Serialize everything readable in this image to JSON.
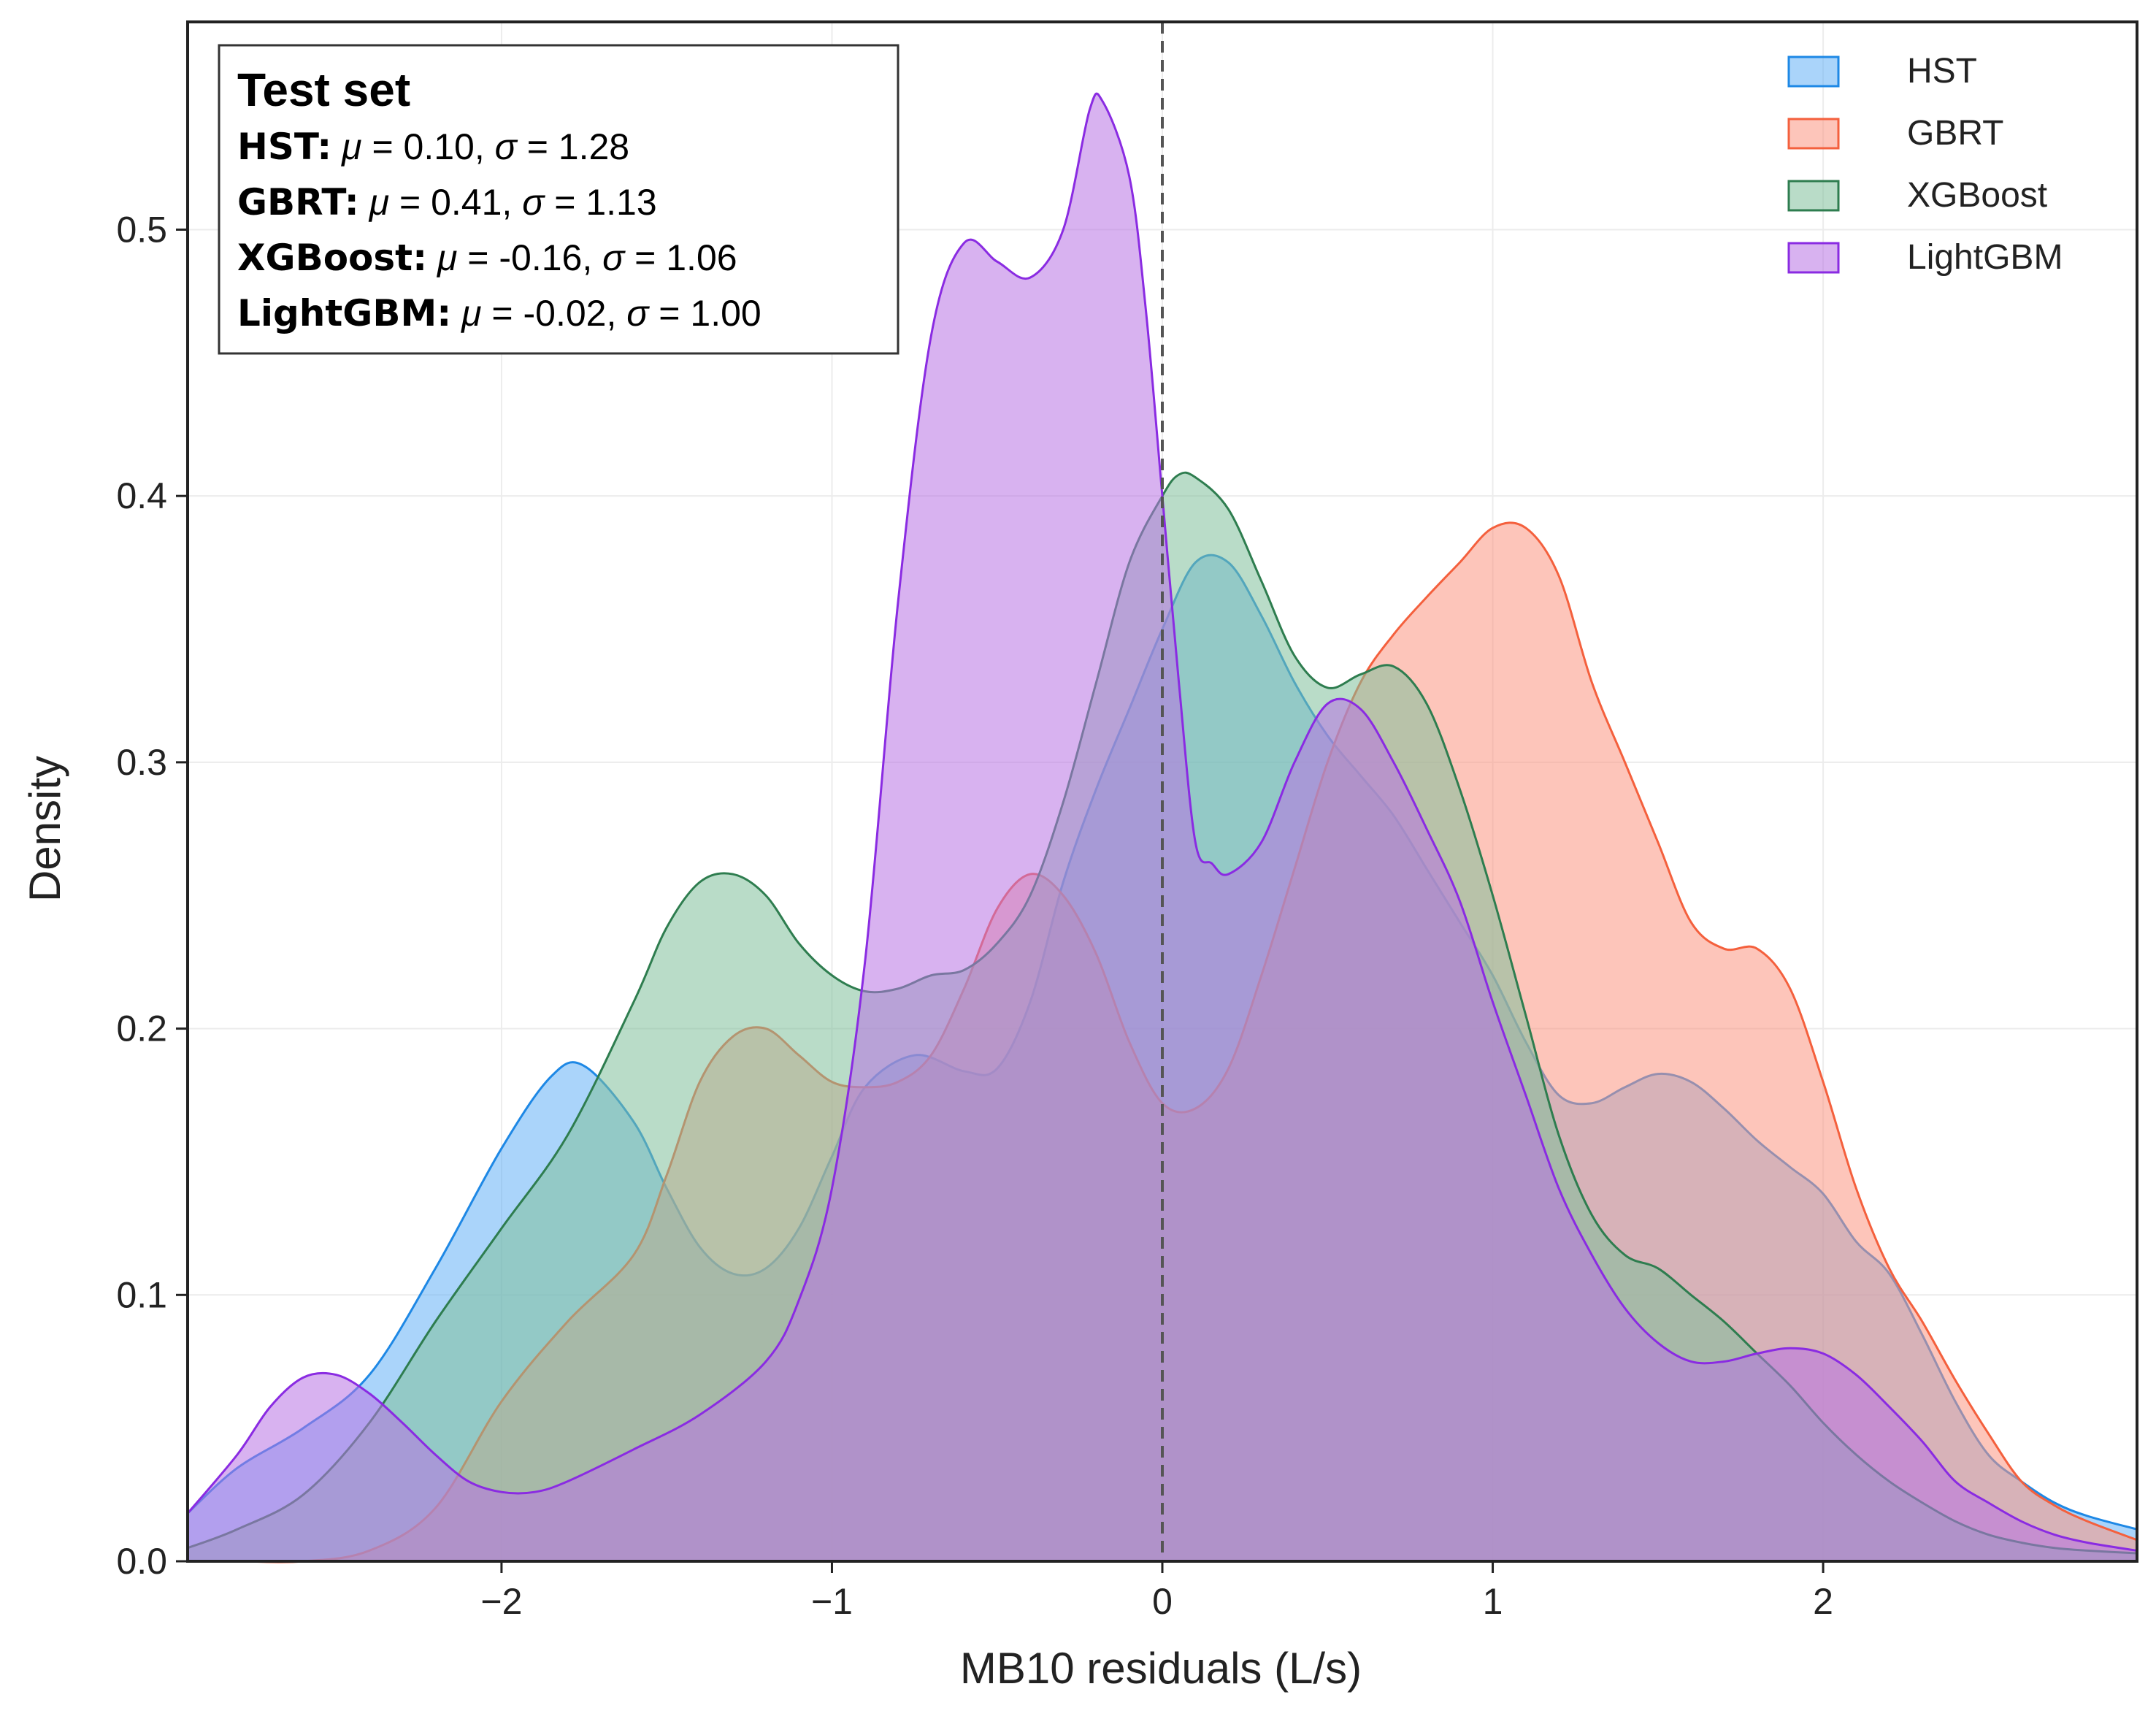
{
  "chart_data": {
    "type": "area",
    "xlabel": "MB10 residuals (L/s)",
    "ylabel": "Density",
    "xlim": [
      -2.95,
      2.95
    ],
    "ylim": [
      0,
      0.578
    ],
    "x_ticks": [
      -2,
      -1,
      0,
      1,
      2
    ],
    "x_tick_labels": [
      "−2",
      "−1",
      "0",
      "1",
      "2"
    ],
    "y_ticks": [
      0.0,
      0.1,
      0.2,
      0.3,
      0.4,
      0.5
    ],
    "y_tick_labels": [
      "0.0",
      "0.1",
      "0.2",
      "0.3",
      "0.4",
      "0.5"
    ],
    "grid": true,
    "legend_position": "top-right",
    "reference_line": {
      "x": 0,
      "style": "dashed"
    },
    "annotation": {
      "title": "Test set",
      "lines": [
        {
          "model": "HST",
          "mu": "0.10",
          "sigma": "1.28"
        },
        {
          "model": "GBRT",
          "mu": "0.41",
          "sigma": "1.13"
        },
        {
          "model": "XGBoost",
          "mu": "-0.16",
          "sigma": "1.06"
        },
        {
          "model": "LightGBM",
          "mu": "-0.02",
          "sigma": "1.00"
        }
      ]
    },
    "series": [
      {
        "name": "HST",
        "color": "#1e88e5",
        "fill": "#64b0f5",
        "points": [
          [
            -2.95,
            0.018
          ],
          [
            -2.8,
            0.035
          ],
          [
            -2.6,
            0.05
          ],
          [
            -2.4,
            0.07
          ],
          [
            -2.2,
            0.11
          ],
          [
            -2.0,
            0.155
          ],
          [
            -1.85,
            0.182
          ],
          [
            -1.75,
            0.186
          ],
          [
            -1.6,
            0.165
          ],
          [
            -1.5,
            0.14
          ],
          [
            -1.4,
            0.118
          ],
          [
            -1.3,
            0.108
          ],
          [
            -1.2,
            0.11
          ],
          [
            -1.1,
            0.125
          ],
          [
            -1.0,
            0.152
          ],
          [
            -0.9,
            0.178
          ],
          [
            -0.75,
            0.19
          ],
          [
            -0.6,
            0.184
          ],
          [
            -0.5,
            0.185
          ],
          [
            -0.4,
            0.21
          ],
          [
            -0.3,
            0.255
          ],
          [
            -0.2,
            0.29
          ],
          [
            -0.1,
            0.32
          ],
          [
            0.0,
            0.35
          ],
          [
            0.1,
            0.375
          ],
          [
            0.2,
            0.375
          ],
          [
            0.3,
            0.355
          ],
          [
            0.4,
            0.33
          ],
          [
            0.5,
            0.31
          ],
          [
            0.6,
            0.295
          ],
          [
            0.7,
            0.28
          ],
          [
            0.8,
            0.26
          ],
          [
            0.9,
            0.24
          ],
          [
            1.0,
            0.22
          ],
          [
            1.1,
            0.195
          ],
          [
            1.2,
            0.175
          ],
          [
            1.3,
            0.172
          ],
          [
            1.4,
            0.178
          ],
          [
            1.5,
            0.183
          ],
          [
            1.6,
            0.18
          ],
          [
            1.7,
            0.17
          ],
          [
            1.8,
            0.158
          ],
          [
            1.9,
            0.148
          ],
          [
            2.0,
            0.138
          ],
          [
            2.1,
            0.12
          ],
          [
            2.2,
            0.108
          ],
          [
            2.3,
            0.085
          ],
          [
            2.4,
            0.06
          ],
          [
            2.5,
            0.04
          ],
          [
            2.6,
            0.03
          ],
          [
            2.7,
            0.022
          ],
          [
            2.8,
            0.017
          ],
          [
            2.95,
            0.012
          ]
        ]
      },
      {
        "name": "GBRT",
        "color": "#f4603d",
        "fill": "#fb9582",
        "points": [
          [
            -2.95,
            0.0
          ],
          [
            -2.8,
            0.0
          ],
          [
            -2.6,
            0.0
          ],
          [
            -2.4,
            0.004
          ],
          [
            -2.2,
            0.02
          ],
          [
            -2.0,
            0.06
          ],
          [
            -1.8,
            0.09
          ],
          [
            -1.6,
            0.115
          ],
          [
            -1.5,
            0.145
          ],
          [
            -1.4,
            0.18
          ],
          [
            -1.3,
            0.197
          ],
          [
            -1.2,
            0.2
          ],
          [
            -1.1,
            0.19
          ],
          [
            -1.0,
            0.18
          ],
          [
            -0.9,
            0.178
          ],
          [
            -0.8,
            0.18
          ],
          [
            -0.7,
            0.19
          ],
          [
            -0.6,
            0.215
          ],
          [
            -0.5,
            0.245
          ],
          [
            -0.4,
            0.258
          ],
          [
            -0.3,
            0.25
          ],
          [
            -0.2,
            0.228
          ],
          [
            -0.1,
            0.195
          ],
          [
            0.0,
            0.172
          ],
          [
            0.1,
            0.17
          ],
          [
            0.2,
            0.185
          ],
          [
            0.3,
            0.22
          ],
          [
            0.4,
            0.26
          ],
          [
            0.5,
            0.3
          ],
          [
            0.6,
            0.33
          ],
          [
            0.7,
            0.348
          ],
          [
            0.8,
            0.362
          ],
          [
            0.9,
            0.375
          ],
          [
            1.0,
            0.388
          ],
          [
            1.1,
            0.388
          ],
          [
            1.2,
            0.37
          ],
          [
            1.3,
            0.33
          ],
          [
            1.4,
            0.3
          ],
          [
            1.5,
            0.27
          ],
          [
            1.6,
            0.24
          ],
          [
            1.7,
            0.23
          ],
          [
            1.8,
            0.23
          ],
          [
            1.9,
            0.215
          ],
          [
            2.0,
            0.18
          ],
          [
            2.1,
            0.14
          ],
          [
            2.2,
            0.11
          ],
          [
            2.3,
            0.09
          ],
          [
            2.4,
            0.068
          ],
          [
            2.5,
            0.048
          ],
          [
            2.6,
            0.03
          ],
          [
            2.7,
            0.021
          ],
          [
            2.8,
            0.015
          ],
          [
            2.95,
            0.008
          ]
        ]
      },
      {
        "name": "XGBoost",
        "color": "#2e7d4f",
        "fill": "#7fbf9a",
        "points": [
          [
            -2.95,
            0.005
          ],
          [
            -2.8,
            0.012
          ],
          [
            -2.6,
            0.025
          ],
          [
            -2.4,
            0.052
          ],
          [
            -2.2,
            0.09
          ],
          [
            -2.0,
            0.125
          ],
          [
            -1.8,
            0.16
          ],
          [
            -1.6,
            0.21
          ],
          [
            -1.5,
            0.238
          ],
          [
            -1.4,
            0.255
          ],
          [
            -1.3,
            0.258
          ],
          [
            -1.2,
            0.25
          ],
          [
            -1.1,
            0.232
          ],
          [
            -1.0,
            0.22
          ],
          [
            -0.9,
            0.214
          ],
          [
            -0.8,
            0.215
          ],
          [
            -0.7,
            0.22
          ],
          [
            -0.6,
            0.222
          ],
          [
            -0.5,
            0.232
          ],
          [
            -0.4,
            0.25
          ],
          [
            -0.3,
            0.285
          ],
          [
            -0.2,
            0.33
          ],
          [
            -0.1,
            0.375
          ],
          [
            0.0,
            0.4
          ],
          [
            0.05,
            0.408
          ],
          [
            0.1,
            0.407
          ],
          [
            0.2,
            0.395
          ],
          [
            0.3,
            0.368
          ],
          [
            0.4,
            0.34
          ],
          [
            0.5,
            0.328
          ],
          [
            0.6,
            0.333
          ],
          [
            0.7,
            0.336
          ],
          [
            0.8,
            0.322
          ],
          [
            0.9,
            0.29
          ],
          [
            1.0,
            0.25
          ],
          [
            1.1,
            0.205
          ],
          [
            1.2,
            0.16
          ],
          [
            1.3,
            0.13
          ],
          [
            1.4,
            0.115
          ],
          [
            1.5,
            0.11
          ],
          [
            1.6,
            0.1
          ],
          [
            1.7,
            0.09
          ],
          [
            1.8,
            0.078
          ],
          [
            1.9,
            0.066
          ],
          [
            2.0,
            0.052
          ],
          [
            2.1,
            0.04
          ],
          [
            2.2,
            0.03
          ],
          [
            2.3,
            0.022
          ],
          [
            2.4,
            0.015
          ],
          [
            2.5,
            0.01
          ],
          [
            2.6,
            0.007
          ],
          [
            2.7,
            0.005
          ],
          [
            2.8,
            0.004
          ],
          [
            2.95,
            0.003
          ]
        ]
      },
      {
        "name": "LightGBM",
        "color": "#8a2be2",
        "fill": "#b873e3",
        "points": [
          [
            -2.95,
            0.018
          ],
          [
            -2.8,
            0.04
          ],
          [
            -2.7,
            0.058
          ],
          [
            -2.6,
            0.069
          ],
          [
            -2.5,
            0.07
          ],
          [
            -2.4,
            0.063
          ],
          [
            -2.3,
            0.052
          ],
          [
            -2.2,
            0.04
          ],
          [
            -2.1,
            0.03
          ],
          [
            -2.0,
            0.026
          ],
          [
            -1.9,
            0.026
          ],
          [
            -1.8,
            0.03
          ],
          [
            -1.6,
            0.042
          ],
          [
            -1.4,
            0.055
          ],
          [
            -1.2,
            0.075
          ],
          [
            -1.1,
            0.098
          ],
          [
            -1.0,
            0.14
          ],
          [
            -0.9,
            0.225
          ],
          [
            -0.8,
            0.36
          ],
          [
            -0.7,
            0.46
          ],
          [
            -0.6,
            0.495
          ],
          [
            -0.5,
            0.488
          ],
          [
            -0.4,
            0.482
          ],
          [
            -0.3,
            0.5
          ],
          [
            -0.22,
            0.545
          ],
          [
            -0.18,
            0.548
          ],
          [
            -0.1,
            0.52
          ],
          [
            -0.05,
            0.47
          ],
          [
            0.0,
            0.4
          ],
          [
            0.05,
            0.33
          ],
          [
            0.1,
            0.27
          ],
          [
            0.15,
            0.262
          ],
          [
            0.2,
            0.258
          ],
          [
            0.3,
            0.27
          ],
          [
            0.4,
            0.3
          ],
          [
            0.5,
            0.322
          ],
          [
            0.6,
            0.32
          ],
          [
            0.7,
            0.3
          ],
          [
            0.8,
            0.275
          ],
          [
            0.9,
            0.248
          ],
          [
            1.0,
            0.21
          ],
          [
            1.1,
            0.175
          ],
          [
            1.2,
            0.14
          ],
          [
            1.3,
            0.115
          ],
          [
            1.4,
            0.095
          ],
          [
            1.5,
            0.082
          ],
          [
            1.6,
            0.075
          ],
          [
            1.7,
            0.075
          ],
          [
            1.8,
            0.078
          ],
          [
            1.9,
            0.08
          ],
          [
            2.0,
            0.078
          ],
          [
            2.1,
            0.07
          ],
          [
            2.2,
            0.058
          ],
          [
            2.3,
            0.045
          ],
          [
            2.4,
            0.03
          ],
          [
            2.5,
            0.022
          ],
          [
            2.6,
            0.015
          ],
          [
            2.7,
            0.01
          ],
          [
            2.8,
            0.007
          ],
          [
            2.95,
            0.004
          ]
        ]
      }
    ]
  }
}
